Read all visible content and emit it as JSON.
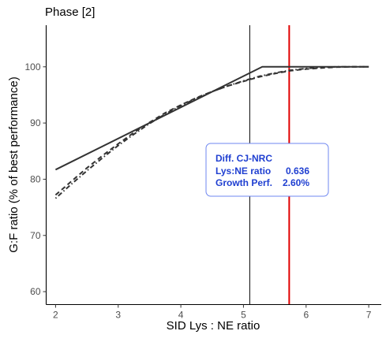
{
  "chart_data": {
    "type": "line",
    "title": "Phase [2]",
    "xlabel": "SID Lys : NE ratio",
    "ylabel": "G:F ratio (% of best performance)",
    "xlim": [
      1.85,
      7.2
    ],
    "ylim": [
      57.7,
      107.4
    ],
    "x_ticks": [
      2,
      3,
      4,
      5,
      6,
      7
    ],
    "y_ticks": [
      60,
      70,
      80,
      90,
      100
    ],
    "grid": false,
    "series": [
      {
        "style": "solid",
        "color": "#333333",
        "x": [
          2.0,
          5.3,
          7.0
        ],
        "y": [
          81.7,
          100.0,
          100.0
        ]
      },
      {
        "style": "dashed",
        "color": "#333333",
        "x": [
          2.0,
          2.25,
          2.5,
          2.75,
          3.0,
          3.25,
          3.5,
          3.75,
          4.0,
          4.25,
          4.5,
          4.75,
          5.0,
          5.25,
          5.5,
          5.75,
          6.0,
          6.25,
          6.5,
          6.75,
          7.0
        ],
        "y": [
          77.2,
          79.6,
          82.0,
          84.2,
          86.3,
          88.3,
          90.1,
          91.8,
          93.2,
          94.5,
          95.6,
          96.6,
          97.4,
          98.2,
          98.8,
          99.3,
          99.6,
          99.8,
          99.95,
          100.0,
          100.0
        ]
      },
      {
        "style": "dotdash",
        "color": "#333333",
        "x": [
          2.0,
          2.25,
          2.5,
          2.75,
          3.0,
          3.25,
          3.5,
          3.75,
          4.0,
          4.25,
          4.5,
          4.75,
          5.0,
          5.25,
          5.5,
          5.75,
          6.0,
          6.25,
          6.5,
          6.75,
          7.0
        ],
        "y": [
          76.6,
          79.1,
          81.5,
          83.8,
          86.0,
          88.0,
          89.9,
          91.6,
          93.1,
          94.4,
          95.6,
          96.6,
          97.5,
          98.3,
          98.9,
          99.4,
          99.7,
          99.9,
          100.0,
          100.0,
          100.0
        ]
      }
    ],
    "vlines": [
      {
        "x": 5.1,
        "color": "#000000"
      },
      {
        "x": 5.73,
        "color": "#e00000"
      }
    ],
    "annotation": {
      "title": "Diff. CJ-NRC",
      "rows": [
        {
          "label": "Lys:NE ratio",
          "value": "0.636"
        },
        {
          "label": "Growth Perf.",
          "value": "2.60%"
        }
      ],
      "text_color": "#1f3fd1",
      "border_color": "#6f87f0"
    }
  }
}
